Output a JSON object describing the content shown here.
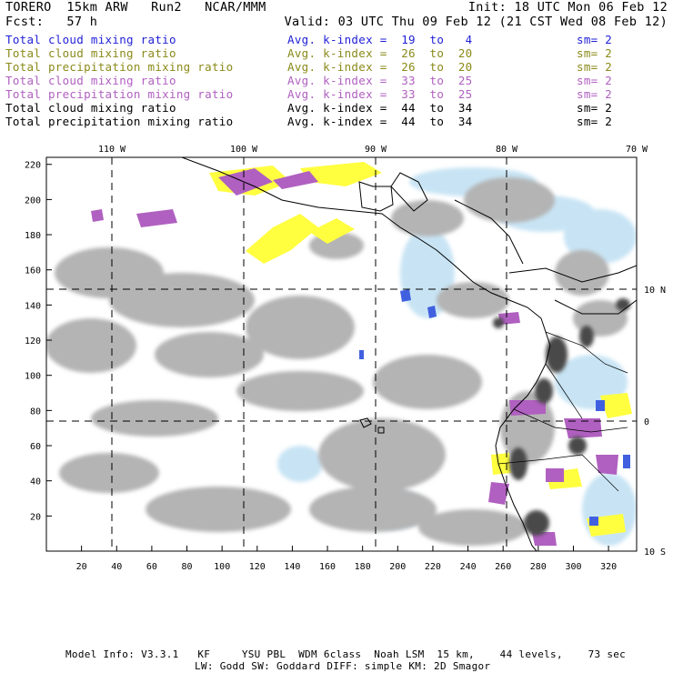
{
  "header": {
    "model": "TORERO  15km ARW   Run2   NCAR/MMM",
    "init": "Init: 18 UTC Mon 06 Feb 12",
    "fcst": "Fcst:   57 h",
    "valid": "Valid: 03 UTC Thu 09 Feb 12 (21 CST Wed 08 Feb 12)"
  },
  "legend": [
    {
      "field": "Total cloud mixing ratio",
      "index": "Avg. k-index =  19  to   4",
      "sm": "sm= 2",
      "color": "#1f1fd6"
    },
    {
      "field": "Total cloud mixing ratio",
      "index": "Avg. k-index =  26  to  20",
      "sm": "sm= 2",
      "color": "#8a8a1a"
    },
    {
      "field": "Total precipitation mixing ratio",
      "index": "Avg. k-index =  26  to  20",
      "sm": "sm= 2",
      "color": "#8a8a1a"
    },
    {
      "field": "Total cloud mixing ratio",
      "index": "Avg. k-index =  33  to  25",
      "sm": "sm= 2",
      "color": "#b060c0"
    },
    {
      "field": "Total precipitation mixing ratio",
      "index": "Avg. k-index =  33  to  25",
      "sm": "sm= 2",
      "color": "#b060c0"
    },
    {
      "field": "Total cloud mixing ratio",
      "index": "Avg. k-index =  44  to  34",
      "sm": "sm= 2",
      "color": "#000000"
    },
    {
      "field": "Total precipitation mixing ratio",
      "index": "Avg. k-index =  44  to  34",
      "sm": "sm= 2",
      "color": "#000000"
    }
  ],
  "map": {
    "lon_labels": [
      "110 W",
      "100 W",
      "90 W",
      "80 W",
      "70 W"
    ],
    "lat_labels": [
      "10 N",
      "0",
      "10 S"
    ],
    "x_ticks": [
      "20",
      "40",
      "60",
      "80",
      "100",
      "120",
      "140",
      "160",
      "180",
      "200",
      "220",
      "240",
      "260",
      "280",
      "300",
      "320"
    ],
    "y_ticks": [
      "20",
      "40",
      "60",
      "80",
      "100",
      "120",
      "140",
      "160",
      "180",
      "200",
      "220"
    ],
    "colors": {
      "gray_cloud": "#b4b4b4",
      "dark_cloud": "#505050",
      "light_blue": "#c8e4f4",
      "blue": "#4060e0",
      "yellow": "#ffff40",
      "purple": "#b060c0"
    }
  },
  "footer": {
    "line1": "Model Info: V3.3.1   KF     YSU PBL  WDM 6class  Noah LSM  15 km,    44 levels,    73 sec",
    "line2": "LW: Godd SW: Goddard DIFF: simple KM: 2D Smagor"
  }
}
